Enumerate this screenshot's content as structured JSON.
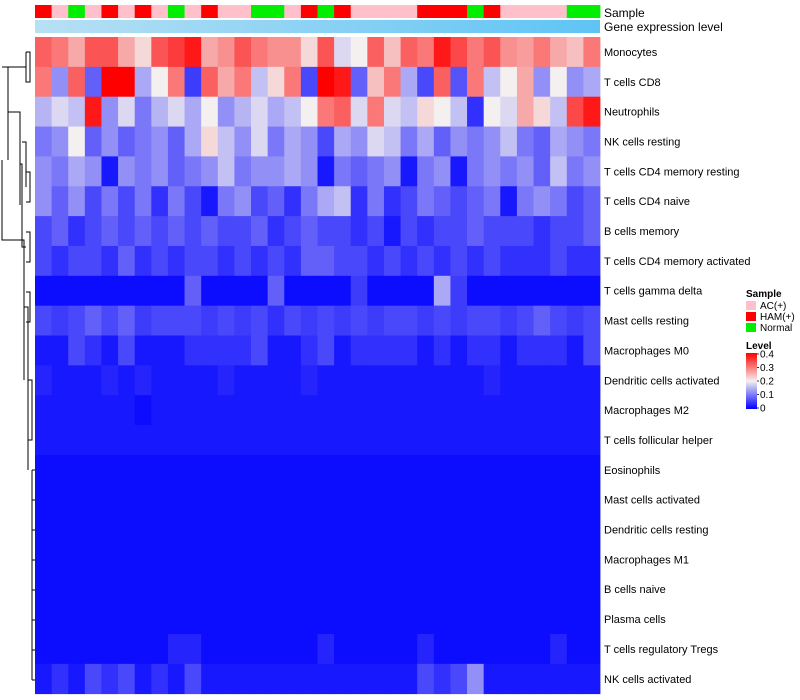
{
  "chart_data": {
    "type": "heatmap",
    "title": "",
    "annotation_labels": {
      "sample": "Sample",
      "gene_expression": "Gene expression level"
    },
    "rows": [
      "Monocytes",
      "T cells CD8",
      "Neutrophils",
      "NK cells resting",
      "T cells CD4 memory resting",
      "T cells CD4 naive",
      "B cells memory",
      "T cells CD4 memory activated",
      "T cells gamma delta",
      "Mast cells resting",
      "Macrophages M0",
      "Dendritic cells activated",
      "Macrophages M2",
      "T cells follicular helper",
      "Eosinophils",
      "Mast cells activated",
      "Dendritic cells resting",
      "Macrophages M1",
      "B cells naive",
      "Plasma cells",
      "T cells regulatory  Tregs",
      "NK cells activated"
    ],
    "columns_count": 34,
    "sample_groups": [
      "HAM(+)",
      "AC(+)",
      "Normal",
      "AC(+)",
      "HAM(+)",
      "AC(+)",
      "HAM(+)",
      "AC(+)",
      "Normal",
      "AC(+)",
      "HAM(+)",
      "AC(+)",
      "AC(+)",
      "Normal",
      "Normal",
      "AC(+)",
      "HAM(+)",
      "Normal",
      "HAM(+)",
      "AC(+)",
      "AC(+)",
      "AC(+)",
      "AC(+)",
      "HAM(+)",
      "HAM(+)",
      "HAM(+)",
      "Normal",
      "HAM(+)",
      "AC(+)",
      "AC(+)",
      "AC(+)",
      "AC(+)",
      "Normal",
      "Normal"
    ],
    "values": [
      [
        0.32,
        0.3,
        0.26,
        0.33,
        0.33,
        0.26,
        0.22,
        0.33,
        0.35,
        0.38,
        0.26,
        0.28,
        0.33,
        0.3,
        0.28,
        0.28,
        0.22,
        0.33,
        0.18,
        0.2,
        0.32,
        0.24,
        0.32,
        0.3,
        0.38,
        0.34,
        0.3,
        0.33,
        0.28,
        0.27,
        0.3,
        0.26,
        0.24,
        0.3
      ],
      [
        0.3,
        0.12,
        0.32,
        0.08,
        0.4,
        0.4,
        0.14,
        0.2,
        0.3,
        0.05,
        0.32,
        0.26,
        0.3,
        0.16,
        0.22,
        0.3,
        0.06,
        0.4,
        0.38,
        0.08,
        0.24,
        0.3,
        0.14,
        0.06,
        0.32,
        0.07,
        0.3,
        0.16,
        0.2,
        0.26,
        0.12,
        0.2,
        0.12,
        0.14
      ],
      [
        0.15,
        0.18,
        0.16,
        0.38,
        0.12,
        0.18,
        0.1,
        0.15,
        0.18,
        0.14,
        0.2,
        0.12,
        0.15,
        0.18,
        0.14,
        0.16,
        0.2,
        0.3,
        0.32,
        0.18,
        0.3,
        0.18,
        0.16,
        0.22,
        0.2,
        0.16,
        0.04,
        0.2,
        0.18,
        0.26,
        0.22,
        0.16,
        0.34,
        0.38
      ],
      [
        0.1,
        0.12,
        0.2,
        0.08,
        0.12,
        0.08,
        0.1,
        0.12,
        0.08,
        0.14,
        0.22,
        0.16,
        0.12,
        0.18,
        0.1,
        0.14,
        0.12,
        0.06,
        0.14,
        0.12,
        0.18,
        0.16,
        0.1,
        0.14,
        0.08,
        0.12,
        0.1,
        0.12,
        0.16,
        0.1,
        0.08,
        0.14,
        0.12,
        0.1
      ],
      [
        0.12,
        0.1,
        0.14,
        0.12,
        0.02,
        0.12,
        0.1,
        0.12,
        0.08,
        0.1,
        0.12,
        0.16,
        0.1,
        0.12,
        0.12,
        0.14,
        0.12,
        0.02,
        0.1,
        0.08,
        0.1,
        0.12,
        0.02,
        0.1,
        0.12,
        0.02,
        0.1,
        0.12,
        0.1,
        0.12,
        0.08,
        0.16,
        0.1,
        0.12
      ],
      [
        0.12,
        0.08,
        0.12,
        0.06,
        0.1,
        0.06,
        0.1,
        0.04,
        0.1,
        0.06,
        0.02,
        0.1,
        0.12,
        0.06,
        0.08,
        0.04,
        0.1,
        0.14,
        0.16,
        0.04,
        0.1,
        0.04,
        0.06,
        0.1,
        0.08,
        0.06,
        0.08,
        0.1,
        0.02,
        0.1,
        0.12,
        0.1,
        0.06,
        0.08
      ],
      [
        0.06,
        0.08,
        0.04,
        0.06,
        0.08,
        0.06,
        0.08,
        0.06,
        0.08,
        0.06,
        0.08,
        0.06,
        0.06,
        0.08,
        0.04,
        0.06,
        0.08,
        0.06,
        0.06,
        0.04,
        0.06,
        0.02,
        0.06,
        0.04,
        0.06,
        0.06,
        0.08,
        0.06,
        0.06,
        0.06,
        0.04,
        0.06,
        0.06,
        0.08
      ],
      [
        0.06,
        0.04,
        0.06,
        0.06,
        0.04,
        0.08,
        0.04,
        0.06,
        0.04,
        0.06,
        0.06,
        0.04,
        0.06,
        0.04,
        0.06,
        0.04,
        0.08,
        0.08,
        0.06,
        0.06,
        0.04,
        0.06,
        0.04,
        0.06,
        0.04,
        0.06,
        0.04,
        0.06,
        0.04,
        0.04,
        0.04,
        0.06,
        0.04,
        0.04
      ],
      [
        0.01,
        0.01,
        0.01,
        0.01,
        0.01,
        0.01,
        0.01,
        0.01,
        0.01,
        0.08,
        0.01,
        0.01,
        0.01,
        0.01,
        0.08,
        0.01,
        0.01,
        0.01,
        0.01,
        0.05,
        0.01,
        0.01,
        0.01,
        0.01,
        0.14,
        0.05,
        0.01,
        0.01,
        0.01,
        0.01,
        0.01,
        0.01,
        0.01,
        0.01
      ],
      [
        0.06,
        0.05,
        0.06,
        0.08,
        0.06,
        0.08,
        0.05,
        0.06,
        0.06,
        0.06,
        0.05,
        0.06,
        0.05,
        0.06,
        0.04,
        0.06,
        0.05,
        0.06,
        0.05,
        0.06,
        0.05,
        0.06,
        0.06,
        0.05,
        0.06,
        0.05,
        0.06,
        0.06,
        0.05,
        0.06,
        0.08,
        0.06,
        0.05,
        0.06
      ],
      [
        0.02,
        0.02,
        0.06,
        0.04,
        0.02,
        0.06,
        0.02,
        0.02,
        0.02,
        0.04,
        0.04,
        0.04,
        0.04,
        0.06,
        0.02,
        0.02,
        0.04,
        0.06,
        0.02,
        0.04,
        0.04,
        0.04,
        0.04,
        0.02,
        0.04,
        0.02,
        0.04,
        0.04,
        0.02,
        0.04,
        0.04,
        0.04,
        0.02,
        0.06
      ],
      [
        0.03,
        0.02,
        0.02,
        0.02,
        0.03,
        0.02,
        0.03,
        0.02,
        0.02,
        0.02,
        0.02,
        0.03,
        0.02,
        0.02,
        0.02,
        0.02,
        0.03,
        0.02,
        0.02,
        0.02,
        0.02,
        0.02,
        0.02,
        0.02,
        0.02,
        0.02,
        0.02,
        0.03,
        0.02,
        0.02,
        0.02,
        0.02,
        0.02,
        0.02
      ],
      [
        0.02,
        0.02,
        0.02,
        0.02,
        0.02,
        0.02,
        0.01,
        0.02,
        0.02,
        0.02,
        0.02,
        0.02,
        0.02,
        0.02,
        0.02,
        0.02,
        0.02,
        0.02,
        0.02,
        0.02,
        0.02,
        0.02,
        0.02,
        0.02,
        0.02,
        0.02,
        0.02,
        0.02,
        0.02,
        0.02,
        0.02,
        0.02,
        0.02,
        0.02
      ],
      [
        0.02,
        0.02,
        0.02,
        0.02,
        0.02,
        0.02,
        0.02,
        0.02,
        0.02,
        0.02,
        0.02,
        0.02,
        0.02,
        0.02,
        0.02,
        0.02,
        0.02,
        0.02,
        0.02,
        0.02,
        0.02,
        0.02,
        0.02,
        0.02,
        0.02,
        0.02,
        0.02,
        0.02,
        0.02,
        0.02,
        0.02,
        0.02,
        0.02,
        0.02
      ],
      [
        0.01,
        0.01,
        0.01,
        0.01,
        0.01,
        0.01,
        0.01,
        0.01,
        0.01,
        0.01,
        0.01,
        0.01,
        0.01,
        0.01,
        0.01,
        0.01,
        0.01,
        0.01,
        0.01,
        0.01,
        0.01,
        0.01,
        0.01,
        0.01,
        0.01,
        0.01,
        0.01,
        0.01,
        0.01,
        0.01,
        0.01,
        0.01,
        0.01,
        0.01
      ],
      [
        0.01,
        0.01,
        0.01,
        0.01,
        0.01,
        0.01,
        0.01,
        0.01,
        0.01,
        0.01,
        0.01,
        0.01,
        0.01,
        0.01,
        0.01,
        0.01,
        0.01,
        0.01,
        0.01,
        0.01,
        0.01,
        0.01,
        0.01,
        0.01,
        0.01,
        0.01,
        0.01,
        0.01,
        0.01,
        0.01,
        0.01,
        0.01,
        0.01,
        0.01
      ],
      [
        0.01,
        0.01,
        0.01,
        0.01,
        0.01,
        0.01,
        0.01,
        0.01,
        0.01,
        0.01,
        0.01,
        0.01,
        0.01,
        0.01,
        0.01,
        0.01,
        0.01,
        0.01,
        0.01,
        0.01,
        0.01,
        0.01,
        0.01,
        0.01,
        0.01,
        0.01,
        0.01,
        0.01,
        0.01,
        0.01,
        0.01,
        0.01,
        0.01,
        0.01
      ],
      [
        0.01,
        0.01,
        0.01,
        0.01,
        0.01,
        0.01,
        0.01,
        0.01,
        0.01,
        0.01,
        0.01,
        0.01,
        0.01,
        0.01,
        0.01,
        0.01,
        0.01,
        0.01,
        0.01,
        0.01,
        0.01,
        0.01,
        0.01,
        0.01,
        0.01,
        0.01,
        0.01,
        0.01,
        0.01,
        0.01,
        0.01,
        0.01,
        0.01,
        0.01
      ],
      [
        0.01,
        0.01,
        0.01,
        0.01,
        0.01,
        0.01,
        0.01,
        0.01,
        0.01,
        0.01,
        0.01,
        0.01,
        0.01,
        0.01,
        0.01,
        0.01,
        0.01,
        0.01,
        0.01,
        0.01,
        0.01,
        0.01,
        0.01,
        0.01,
        0.01,
        0.01,
        0.01,
        0.01,
        0.01,
        0.01,
        0.01,
        0.01,
        0.01,
        0.01
      ],
      [
        0.01,
        0.01,
        0.01,
        0.01,
        0.01,
        0.01,
        0.01,
        0.01,
        0.01,
        0.01,
        0.01,
        0.01,
        0.01,
        0.01,
        0.01,
        0.01,
        0.01,
        0.01,
        0.01,
        0.01,
        0.01,
        0.01,
        0.01,
        0.01,
        0.01,
        0.01,
        0.01,
        0.01,
        0.01,
        0.01,
        0.01,
        0.01,
        0.01,
        0.01
      ],
      [
        0.01,
        0.01,
        0.01,
        0.01,
        0.01,
        0.01,
        0.01,
        0.01,
        0.03,
        0.03,
        0.01,
        0.01,
        0.01,
        0.01,
        0.01,
        0.01,
        0.01,
        0.03,
        0.01,
        0.01,
        0.01,
        0.01,
        0.01,
        0.03,
        0.01,
        0.01,
        0.01,
        0.01,
        0.01,
        0.01,
        0.01,
        0.03,
        0.01,
        0.01
      ],
      [
        0.02,
        0.04,
        0.02,
        0.06,
        0.04,
        0.06,
        0.02,
        0.04,
        0.02,
        0.06,
        0.02,
        0.02,
        0.02,
        0.02,
        0.02,
        0.02,
        0.02,
        0.02,
        0.02,
        0.02,
        0.02,
        0.02,
        0.02,
        0.06,
        0.04,
        0.06,
        0.12,
        0.02,
        0.02,
        0.02,
        0.02,
        0.02,
        0.02,
        0.02
      ]
    ],
    "legend": {
      "sample_title": "Sample",
      "sample_groups": [
        {
          "label": "AC(+)",
          "color": "#ffc0cb"
        },
        {
          "label": "HAM(+)",
          "color": "#ff0000"
        },
        {
          "label": "Normal",
          "color": "#00ee00"
        }
      ],
      "level_title": "Level",
      "level_ticks": [
        "0.4",
        "0.3",
        "0.2",
        "0.1",
        "0"
      ],
      "level_range": [
        0,
        0.4
      ]
    },
    "colors": {
      "low": "#0000ff",
      "mid": "#f4f0f0",
      "high": "#ff0000",
      "gene_expr_start": "#b8e0f4",
      "gene_expr_end": "#5ec4f4"
    }
  }
}
